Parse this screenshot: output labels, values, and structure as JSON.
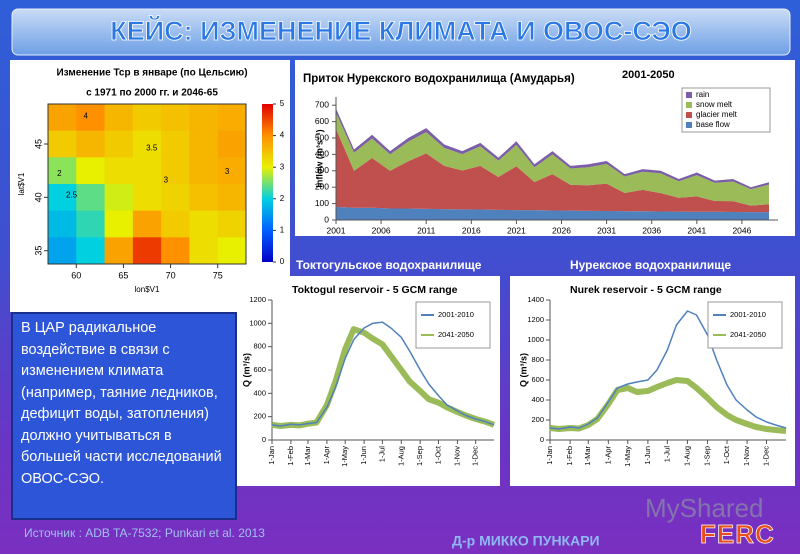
{
  "title": "КЕЙС: ИЗМЕНЕНИЕ КЛИМАТА И ОВОС-СЭО",
  "body_text": "В ЦАР радикальное воздействие в связи с изменением климата (например, таяние ледников, дефицит воды, затопления) должно учитываться в большей части исследований ОВОС-СЭО.",
  "source": "Источник : ADB TA-7532; Punkari et al. 2013",
  "author": "Д-р МИККО ПУНКАРИ",
  "watermark": "MyShared",
  "logo": "FERC",
  "panel_labels": [
    "Токтогульское водохранилище",
    "Нурекское водохранилище"
  ],
  "chart_data": [
    {
      "type": "heatmap",
      "title": "Изменение Тср в январе (по Цельсию)",
      "subtitle": "с 1971 по 2000 гг. и 2046-65",
      "xlabel": "lon$V1",
      "ylabel": "lat$V1",
      "x": [
        58.5,
        61.5,
        64.5,
        67.5,
        70.5,
        73.5,
        76.5
      ],
      "y": [
        47.5,
        45,
        42.5,
        40,
        37.5,
        35
      ],
      "z": [
        [
          3.8,
          4.0,
          3.6,
          3.4,
          3.5,
          3.6,
          3.7
        ],
        [
          3.4,
          3.6,
          3.4,
          3.2,
          3.4,
          3.6,
          3.8
        ],
        [
          2.6,
          3.0,
          3.2,
          3.2,
          3.4,
          3.6,
          3.7
        ],
        [
          2.0,
          2.4,
          2.9,
          3.2,
          3.3,
          3.5,
          3.6
        ],
        [
          1.8,
          2.2,
          3.0,
          3.8,
          3.4,
          3.2,
          3.3
        ],
        [
          1.6,
          2.0,
          3.8,
          4.6,
          4.0,
          3.2,
          3.0
        ]
      ],
      "xlim": [
        57,
        78
      ],
      "ylim": [
        33.75,
        48.75
      ],
      "xticks": [
        60,
        65,
        70,
        75
      ],
      "yticks": [
        35,
        40,
        45
      ],
      "zlim": [
        0,
        5
      ],
      "zticks": [
        0,
        1,
        2,
        3,
        4,
        5
      ],
      "annotations": [
        {
          "text": "4",
          "x": 61,
          "y": 47.6
        },
        {
          "text": "3.5",
          "x": 68,
          "y": 44.6
        },
        {
          "text": "3",
          "x": 69.5,
          "y": 41.6
        },
        {
          "text": "2.5",
          "x": 59.5,
          "y": 40.2
        },
        {
          "text": "2",
          "x": 58.2,
          "y": 42.2
        },
        {
          "text": "3",
          "x": 76,
          "y": 42.4
        }
      ]
    },
    {
      "type": "stacked_area",
      "title": "Приток Нурекского водохранилища (Амударья)",
      "subtitle": "2001-2050",
      "ylabel": "Inflow (m³s⁻¹)",
      "x": [
        2001,
        2003,
        2005,
        2007,
        2009,
        2011,
        2013,
        2015,
        2017,
        2019,
        2021,
        2023,
        2025,
        2027,
        2029,
        2031,
        2033,
        2035,
        2037,
        2039,
        2041,
        2043,
        2045,
        2047,
        2049
      ],
      "series": [
        {
          "name": "rain",
          "color": "#7b5ea7",
          "values": [
            25,
            20,
            22,
            20,
            22,
            24,
            20,
            18,
            20,
            18,
            22,
            18,
            20,
            16,
            18,
            18,
            15,
            16,
            16,
            14,
            16,
            14,
            15,
            12,
            14
          ]
        },
        {
          "name": "snow melt",
          "color": "#9bbb59",
          "values": [
            100,
            110,
            120,
            100,
            120,
            130,
            110,
            100,
            120,
            100,
            130,
            90,
            120,
            100,
            110,
            120,
            100,
            110,
            120,
            100,
            130,
            110,
            120,
            100,
            120
          ]
        },
        {
          "name": "glacier melt",
          "color": "#c0504d",
          "values": [
            475,
            225,
            303,
            230,
            288,
            338,
            264,
            237,
            266,
            200,
            268,
            172,
            222,
            157,
            156,
            167,
            111,
            131,
            112,
            85,
            94,
            66,
            66,
            40,
            48
          ]
        },
        {
          "name": "base flow",
          "color": "#4f81bd",
          "values": [
            80,
            75,
            75,
            70,
            70,
            68,
            66,
            65,
            64,
            62,
            60,
            60,
            58,
            57,
            56,
            55,
            54,
            53,
            52,
            51,
            50,
            50,
            49,
            48,
            48
          ]
        }
      ],
      "xlim": [
        2001,
        2050
      ],
      "ylim": [
        0,
        750
      ],
      "xticks": [
        2001,
        2006,
        2011,
        2016,
        2021,
        2026,
        2031,
        2036,
        2041,
        2046
      ],
      "yticks": [
        0,
        100,
        200,
        300,
        400,
        500,
        600,
        700
      ],
      "legend": "top-right"
    },
    {
      "type": "line",
      "title": "Toktogul reservoir - 5 GCM range",
      "ylabel": "Q (m³/s)",
      "x": [
        1,
        15,
        32,
        46,
        60,
        74,
        91,
        105,
        121,
        135,
        152,
        166,
        182,
        196,
        213,
        227,
        244,
        258,
        274,
        288,
        305,
        319,
        335,
        349,
        365
      ],
      "series": [
        {
          "name": "2001-2010",
          "color": "#4f81bd",
          "width": 1.5,
          "values": [
            130,
            120,
            135,
            130,
            140,
            150,
            280,
            450,
            700,
            860,
            960,
            1000,
            1010,
            960,
            880,
            760,
            600,
            480,
            380,
            300,
            250,
            210,
            180,
            160,
            130
          ]
        },
        {
          "name": "2041-2050",
          "color": "#9bbb59",
          "width": 6,
          "values": [
            130,
            120,
            130,
            125,
            140,
            150,
            300,
            500,
            780,
            950,
            920,
            870,
            820,
            720,
            600,
            500,
            420,
            350,
            320,
            280,
            240,
            210,
            180,
            160,
            130
          ]
        }
      ],
      "xlim": [
        1,
        365
      ],
      "ylim": [
        0,
        1200
      ],
      "yticks": [
        0,
        200,
        400,
        600,
        800,
        1000,
        1200
      ],
      "xticks": [
        {
          "value": 1,
          "label": "1-Jan"
        },
        {
          "value": 32,
          "label": "1-Feb"
        },
        {
          "value": 60,
          "label": "1-Mar"
        },
        {
          "value": 91,
          "label": "1-Apr"
        },
        {
          "value": 121,
          "label": "1-May"
        },
        {
          "value": 152,
          "label": "1-Jun"
        },
        {
          "value": 182,
          "label": "1-Jul"
        },
        {
          "value": 213,
          "label": "1-Aug"
        },
        {
          "value": 244,
          "label": "1-Sep"
        },
        {
          "value": 274,
          "label": "1-Oct"
        },
        {
          "value": 305,
          "label": "1-Nov"
        },
        {
          "value": 335,
          "label": "1-Dec"
        }
      ],
      "legend": "top-right"
    },
    {
      "type": "line",
      "title": "Nurek reservoir - 5 GCM range",
      "ylabel": "Q (m³/s)",
      "x": [
        1,
        15,
        32,
        46,
        60,
        74,
        91,
        105,
        121,
        135,
        152,
        166,
        182,
        196,
        213,
        227,
        244,
        258,
        274,
        288,
        305,
        319,
        335,
        349,
        365
      ],
      "series": [
        {
          "name": "2001-2010",
          "color": "#4f81bd",
          "width": 1.5,
          "values": [
            120,
            110,
            130,
            120,
            160,
            220,
            380,
            520,
            560,
            580,
            600,
            700,
            900,
            1150,
            1290,
            1250,
            1050,
            800,
            550,
            400,
            300,
            230,
            180,
            150,
            120
          ]
        },
        {
          "name": "2041-2050",
          "color": "#9bbb59",
          "width": 6,
          "values": [
            120,
            110,
            120,
            115,
            150,
            210,
            360,
            500,
            520,
            480,
            490,
            530,
            570,
            600,
            590,
            520,
            420,
            330,
            250,
            200,
            160,
            130,
            110,
            100,
            90
          ]
        }
      ],
      "xlim": [
        1,
        365
      ],
      "ylim": [
        0,
        1400
      ],
      "yticks": [
        0,
        200,
        400,
        600,
        800,
        1000,
        1200,
        1400
      ],
      "xticks": [
        {
          "value": 1,
          "label": "1-Jan"
        },
        {
          "value": 32,
          "label": "1-Feb"
        },
        {
          "value": 60,
          "label": "1-Mar"
        },
        {
          "value": 91,
          "label": "1-Apr"
        },
        {
          "value": 121,
          "label": "1-May"
        },
        {
          "value": 152,
          "label": "1-Jun"
        },
        {
          "value": 182,
          "label": "1-Jul"
        },
        {
          "value": 213,
          "label": "1-Aug"
        },
        {
          "value": 244,
          "label": "1-Sep"
        },
        {
          "value": 274,
          "label": "1-Oct"
        },
        {
          "value": 305,
          "label": "1-Nov"
        },
        {
          "value": 335,
          "label": "1-Dec"
        }
      ],
      "legend": "top-right"
    }
  ]
}
